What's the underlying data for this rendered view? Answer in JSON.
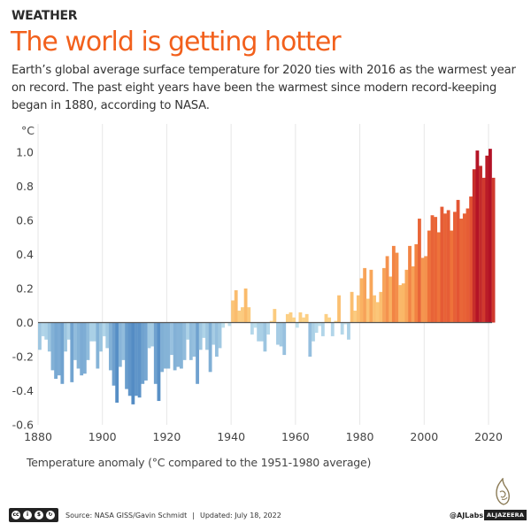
{
  "header": {
    "kicker": "WEATHER",
    "title": "The world is getting hotter",
    "subtitle": "Earth’s global average surface temperature for 2020 ties with 2016 as the warmest year on record. The past eight years have been the warmest since modern record-keeping began in 1880, according to NASA."
  },
  "chart_data": {
    "type": "bar",
    "title": "The world is getting hotter",
    "xlabel": "Temperature anomaly (°C compared to the 1951-1980 average)",
    "ylabel": "°C",
    "unit_label": "°C",
    "ylim": [
      -0.6,
      1.0
    ],
    "xlim": [
      1880,
      2021
    ],
    "yticks": [
      "1.0",
      "0.8",
      "0.6",
      "0.4",
      "0.2",
      "0.0",
      "-0.2",
      "-0.4",
      "-0.6"
    ],
    "ytick_values": [
      1.0,
      0.8,
      0.6,
      0.4,
      0.2,
      0.0,
      -0.2,
      -0.4,
      -0.6
    ],
    "xticks": [
      "1880",
      "1900",
      "1920",
      "1940",
      "1960",
      "1980",
      "2000",
      "2020"
    ],
    "xtick_values": [
      1880,
      1900,
      1920,
      1940,
      1960,
      1980,
      2000,
      2020
    ],
    "grid": "vertical",
    "legend": "none",
    "color_scale": "blue (cool) to red (warm) by anomaly",
    "x": [
      1880,
      1881,
      1882,
      1883,
      1884,
      1885,
      1886,
      1887,
      1888,
      1889,
      1890,
      1891,
      1892,
      1893,
      1894,
      1895,
      1896,
      1897,
      1898,
      1899,
      1900,
      1901,
      1902,
      1903,
      1904,
      1905,
      1906,
      1907,
      1908,
      1909,
      1910,
      1911,
      1912,
      1913,
      1914,
      1915,
      1916,
      1917,
      1918,
      1919,
      1920,
      1921,
      1922,
      1923,
      1924,
      1925,
      1926,
      1927,
      1928,
      1929,
      1930,
      1931,
      1932,
      1933,
      1934,
      1935,
      1936,
      1937,
      1938,
      1939,
      1940,
      1941,
      1942,
      1943,
      1944,
      1945,
      1946,
      1947,
      1948,
      1949,
      1950,
      1951,
      1952,
      1953,
      1954,
      1955,
      1956,
      1957,
      1958,
      1959,
      1960,
      1961,
      1962,
      1963,
      1964,
      1965,
      1966,
      1967,
      1968,
      1969,
      1970,
      1971,
      1972,
      1973,
      1974,
      1975,
      1976,
      1977,
      1978,
      1979,
      1980,
      1981,
      1982,
      1983,
      1984,
      1985,
      1986,
      1987,
      1988,
      1989,
      1990,
      1991,
      1992,
      1993,
      1994,
      1995,
      1996,
      1997,
      1998,
      1999,
      2000,
      2001,
      2002,
      2003,
      2004,
      2005,
      2006,
      2007,
      2008,
      2009,
      2010,
      2011,
      2012,
      2013,
      2014,
      2015,
      2016,
      2017,
      2018,
      2019,
      2020,
      2021
    ],
    "values": [
      -0.16,
      -0.08,
      -0.1,
      -0.17,
      -0.28,
      -0.33,
      -0.31,
      -0.36,
      -0.17,
      -0.1,
      -0.35,
      -0.22,
      -0.27,
      -0.31,
      -0.3,
      -0.22,
      -0.11,
      -0.11,
      -0.27,
      -0.17,
      -0.08,
      -0.15,
      -0.28,
      -0.37,
      -0.47,
      -0.26,
      -0.22,
      -0.39,
      -0.43,
      -0.48,
      -0.43,
      -0.44,
      -0.36,
      -0.34,
      -0.15,
      -0.14,
      -0.36,
      -0.46,
      -0.29,
      -0.27,
      -0.27,
      -0.19,
      -0.28,
      -0.26,
      -0.27,
      -0.22,
      -0.1,
      -0.22,
      -0.2,
      -0.36,
      -0.16,
      -0.09,
      -0.16,
      -0.29,
      -0.13,
      -0.2,
      -0.15,
      -0.03,
      0.0,
      -0.02,
      0.13,
      0.19,
      0.07,
      0.09,
      0.2,
      0.09,
      -0.07,
      -0.03,
      -0.11,
      -0.11,
      -0.17,
      -0.07,
      0.01,
      0.08,
      -0.13,
      -0.14,
      -0.19,
      0.05,
      0.06,
      0.03,
      -0.03,
      0.06,
      0.03,
      0.05,
      -0.2,
      -0.11,
      -0.06,
      -0.02,
      -0.08,
      0.05,
      0.03,
      -0.08,
      0.01,
      0.16,
      -0.07,
      -0.01,
      -0.1,
      0.18,
      0.07,
      0.16,
      0.26,
      0.32,
      0.14,
      0.31,
      0.16,
      0.12,
      0.18,
      0.32,
      0.39,
      0.27,
      0.45,
      0.41,
      0.22,
      0.23,
      0.31,
      0.45,
      0.33,
      0.46,
      0.61,
      0.38,
      0.39,
      0.54,
      0.63,
      0.62,
      0.53,
      0.68,
      0.64,
      0.66,
      0.54,
      0.65,
      0.72,
      0.61,
      0.64,
      0.67,
      0.74,
      0.9,
      1.01,
      0.92,
      0.85,
      0.98,
      1.02,
      0.85
    ]
  },
  "footer": {
    "license_icons": [
      "cc",
      "by",
      "nc",
      "sa"
    ],
    "source": "Source: NASA GISS/Gavin Schmidt",
    "separator": "|",
    "updated": "Updated: July 18, 2022",
    "handle": "@AJLabs",
    "brand": "ALJAZEERA"
  }
}
